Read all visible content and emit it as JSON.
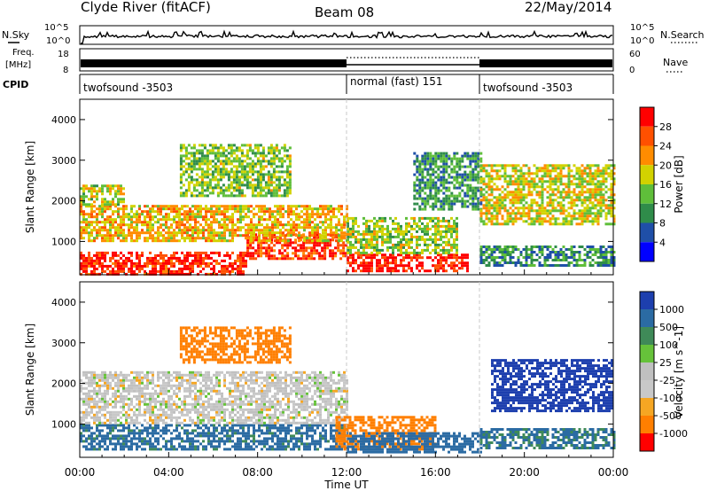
{
  "header": {
    "station": "Clyde River (fitACF)",
    "beam": "Beam 08",
    "date": "22/May/2014"
  },
  "strip_labels": {
    "nsky": "N.Sky",
    "nsearch": "N.Search",
    "freq_line1": "Freq.",
    "freq_line2": "[MHz]",
    "nave": "Nave",
    "cpid": "CPID"
  },
  "strip_ticks": {
    "noise_left_top": "10^5",
    "noise_left_bottom": "10^0",
    "noise_right_top": "10^5",
    "noise_right_bottom": "10^0",
    "freq_top": "18",
    "freq_bottom": "8",
    "nave_top": "60",
    "nave_bottom": "0"
  },
  "cpid_segments": [
    {
      "label": "twofsound -3503",
      "start_hour": 0,
      "end_hour": 12
    },
    {
      "label": "normal (fast) 151",
      "start_hour": 12,
      "end_hour": 18
    },
    {
      "label": "twofsound -3503",
      "start_hour": 18,
      "end_hour": 24
    }
  ],
  "colors": {
    "power_scale": [
      "#0000ff",
      "#1f4fa8",
      "#2f8c4a",
      "#5fbe3a",
      "#d2d200",
      "#ff8c00",
      "#ff5000",
      "#ff0000"
    ],
    "velocity_scale": [
      "#1d3fae",
      "#2b6ba3",
      "#3f8a58",
      "#66c23a",
      "#c0c0c0",
      "#c8c8c8",
      "#f5a623",
      "#ff7f00",
      "#ff0000"
    ],
    "noise_line": "#000000",
    "cutoff_line": "#c8c8c8"
  },
  "chart_data": [
    {
      "type": "heatmap",
      "panel": "power",
      "xlabel": "",
      "ylabel": "Slant Range [km]",
      "x_range_hours": [
        0,
        24
      ],
      "ylim": [
        180,
        4500
      ],
      "x_ticks": [
        "00:00",
        "04:00",
        "08:00",
        "12:00",
        "16:00",
        "20:00",
        "00:00"
      ],
      "y_ticks": [
        1000,
        2000,
        3000,
        4000
      ],
      "colorbar_title": "Power [dB]",
      "colorbar_ticks": [
        "4",
        "8",
        "12",
        "16",
        "20",
        "24",
        "28"
      ],
      "colorbar_range": [
        0,
        30
      ],
      "grid": false,
      "regions": [
        {
          "t0": 0.0,
          "t1": 7.5,
          "r0": 200,
          "r1": 750,
          "value": 27
        },
        {
          "t0": 7.5,
          "t1": 12.0,
          "r0": 600,
          "r1": 1200,
          "value": 26
        },
        {
          "t0": 0.0,
          "t1": 12.0,
          "r0": 1000,
          "r1": 1900,
          "value": 19
        },
        {
          "t0": 0.0,
          "t1": 2.0,
          "r0": 1900,
          "r1": 2400,
          "value": 16
        },
        {
          "t0": 4.5,
          "t1": 9.5,
          "r0": 2100,
          "r1": 3400,
          "value": 14
        },
        {
          "t0": 12.0,
          "t1": 17.5,
          "r0": 300,
          "r1": 700,
          "value": 28
        },
        {
          "t0": 12.0,
          "t1": 17.0,
          "r0": 700,
          "r1": 1600,
          "value": 15
        },
        {
          "t0": 15.0,
          "t1": 18.0,
          "r0": 1800,
          "r1": 3200,
          "value": 10
        },
        {
          "t0": 18.0,
          "t1": 24.0,
          "r0": 400,
          "r1": 900,
          "value": 9
        },
        {
          "t0": 18.0,
          "t1": 24.0,
          "r0": 1400,
          "r1": 2900,
          "value": 17
        }
      ]
    },
    {
      "type": "heatmap",
      "panel": "velocity",
      "xlabel": "Time UT",
      "ylabel": "Slant Range [km]",
      "x_range_hours": [
        0,
        24
      ],
      "ylim": [
        180,
        4500
      ],
      "x_ticks": [
        "00:00",
        "04:00",
        "08:00",
        "12:00",
        "16:00",
        "20:00",
        "00:00"
      ],
      "y_ticks": [
        1000,
        2000,
        3000,
        4000
      ],
      "colorbar_title": "Velocity [m s^-1]",
      "colorbar_ticks": [
        "1000",
        "500",
        "100",
        "25",
        "-25",
        "-100",
        "-500",
        "-1000"
      ],
      "grid": false,
      "regions": [
        {
          "t0": 0.0,
          "t1": 12.0,
          "r0": 400,
          "r1": 1000,
          "value": 120
        },
        {
          "t0": 0.0,
          "t1": 12.0,
          "r0": 1000,
          "r1": 2300,
          "value": 0
        },
        {
          "t0": 4.5,
          "t1": 9.5,
          "r0": 2500,
          "r1": 3400,
          "value": -150
        },
        {
          "t0": 11.5,
          "t1": 16.0,
          "r0": 400,
          "r1": 1200,
          "value": -300
        },
        {
          "t0": 12.0,
          "t1": 18.0,
          "r0": 300,
          "r1": 800,
          "value": 150
        },
        {
          "t0": 18.5,
          "t1": 24.0,
          "r0": 1300,
          "r1": 2600,
          "value": 900
        },
        {
          "t0": 18.0,
          "t1": 24.0,
          "r0": 400,
          "r1": 900,
          "value": 110
        }
      ]
    }
  ]
}
